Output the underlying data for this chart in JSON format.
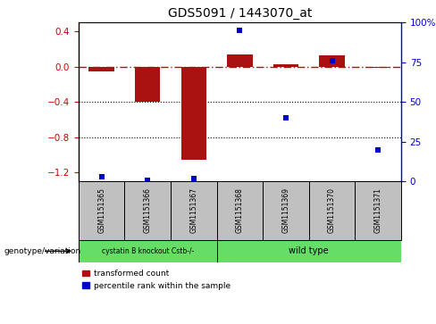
{
  "title": "GDS5091 / 1443070_at",
  "samples": [
    "GSM1151365",
    "GSM1151366",
    "GSM1151367",
    "GSM1151368",
    "GSM1151369",
    "GSM1151370",
    "GSM1151371"
  ],
  "red_bars": [
    -0.05,
    -0.4,
    -1.05,
    0.14,
    0.03,
    0.13,
    -0.01
  ],
  "blue_dots_pct": [
    3,
    1,
    2,
    95,
    40,
    76,
    20
  ],
  "ylim_left": [
    -1.3,
    0.5
  ],
  "ylim_right": [
    0,
    100
  ],
  "zero_line_color": "#cc0000",
  "bar_color": "#aa1111",
  "dot_color": "#0000cc",
  "box_color": "#c0c0c0",
  "green_color": "#66dd66"
}
